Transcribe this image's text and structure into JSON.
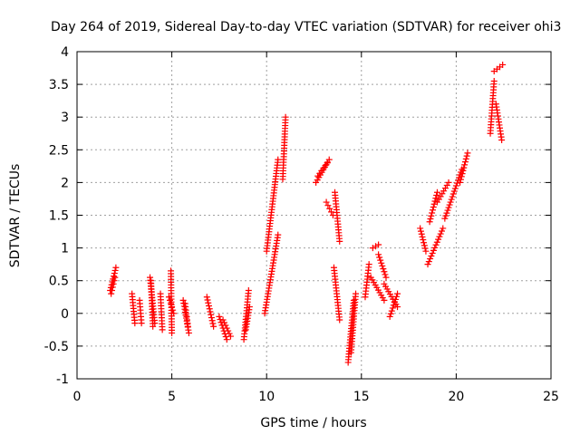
{
  "chart_data": {
    "type": "scatter",
    "title": "Day 264 of 2019, Sidereal Day-to-day VTEC variation (SDTVAR) for receiver ohi3",
    "xlabel": "GPS time / hours",
    "ylabel": "SDTVAR / TECUs",
    "xlim": [
      0,
      25
    ],
    "ylim": [
      -1,
      4
    ],
    "xticks": [
      0,
      5,
      10,
      15,
      20,
      25
    ],
    "yticks": [
      -1,
      -0.5,
      0,
      0.5,
      1,
      1.5,
      2,
      2.5,
      3,
      3.5,
      4
    ],
    "x_tick_labels": [
      "0",
      "5",
      "10",
      "15",
      "20",
      "25"
    ],
    "y_tick_labels": [
      "-1",
      "-0.5",
      "0",
      "0.5",
      "1",
      "1.5",
      "2",
      "2.5",
      "3",
      "3.5",
      "4"
    ],
    "grid": true,
    "marker": "plus",
    "color": "#ff0000",
    "series": [
      {
        "name": "SDTVAR",
        "segments": [
          {
            "x": [
              1.75,
              2.05
            ],
            "y": [
              0.35,
              0.7
            ]
          },
          {
            "x": [
              1.8,
              2.0
            ],
            "y": [
              0.3,
              0.55
            ]
          },
          {
            "x": [
              2.9,
              3.05
            ],
            "y": [
              0.3,
              -0.15
            ]
          },
          {
            "x": [
              3.3,
              3.4
            ],
            "y": [
              0.2,
              -0.15
            ]
          },
          {
            "x": [
              3.85,
              4.1
            ],
            "y": [
              0.55,
              -0.15
            ]
          },
          {
            "x": [
              3.9,
              4.0
            ],
            "y": [
              0.5,
              -0.2
            ]
          },
          {
            "x": [
              4.4,
              4.5
            ],
            "y": [
              0.3,
              -0.25
            ]
          },
          {
            "x": [
              4.85,
              5.1
            ],
            "y": [
              0.25,
              0.0
            ]
          },
          {
            "x": [
              4.95,
              5.0
            ],
            "y": [
              0.65,
              -0.3
            ]
          },
          {
            "x": [
              5.6,
              5.9
            ],
            "y": [
              0.2,
              -0.3
            ]
          },
          {
            "x": [
              5.7,
              5.85
            ],
            "y": [
              0.15,
              -0.2
            ]
          },
          {
            "x": [
              6.85,
              7.2
            ],
            "y": [
              0.25,
              -0.2
            ]
          },
          {
            "x": [
              7.5,
              7.9
            ],
            "y": [
              -0.05,
              -0.4
            ]
          },
          {
            "x": [
              7.7,
              8.1
            ],
            "y": [
              -0.1,
              -0.35
            ]
          },
          {
            "x": [
              8.8,
              9.05
            ],
            "y": [
              -0.4,
              0.35
            ]
          },
          {
            "x": [
              8.9,
              9.1
            ],
            "y": [
              -0.25,
              0.1
            ]
          },
          {
            "x": [
              9.9,
              10.6
            ],
            "y": [
              0.0,
              1.2
            ]
          },
          {
            "x": [
              10.0,
              10.6
            ],
            "y": [
              0.95,
              2.35
            ]
          },
          {
            "x": [
              10.85,
              11.0
            ],
            "y": [
              2.05,
              3.0
            ]
          },
          {
            "x": [
              12.6,
              13.3
            ],
            "y": [
              2.0,
              2.35
            ]
          },
          {
            "x": [
              12.7,
              13.2
            ],
            "y": [
              2.1,
              2.3
            ]
          },
          {
            "x": [
              13.15,
              13.5
            ],
            "y": [
              1.7,
              1.5
            ]
          },
          {
            "x": [
              13.6,
              13.85
            ],
            "y": [
              1.85,
              1.1
            ]
          },
          {
            "x": [
              13.55,
              13.85
            ],
            "y": [
              0.7,
              -0.1
            ]
          },
          {
            "x": [
              14.3,
              14.6
            ],
            "y": [
              -0.75,
              0.2
            ]
          },
          {
            "x": [
              14.45,
              14.7
            ],
            "y": [
              -0.6,
              0.3
            ]
          },
          {
            "x": [
              15.2,
              15.4
            ],
            "y": [
              0.25,
              0.75
            ]
          },
          {
            "x": [
              15.6,
              15.9
            ],
            "y": [
              1.0,
              1.05
            ]
          },
          {
            "x": [
              15.5,
              16.2
            ],
            "y": [
              0.55,
              0.2
            ]
          },
          {
            "x": [
              15.9,
              16.3
            ],
            "y": [
              0.9,
              0.55
            ]
          },
          {
            "x": [
              16.2,
              16.9
            ],
            "y": [
              0.45,
              0.1
            ]
          },
          {
            "x": [
              16.5,
              16.9
            ],
            "y": [
              -0.05,
              0.3
            ]
          },
          {
            "x": [
              18.1,
              18.4
            ],
            "y": [
              1.3,
              0.95
            ]
          },
          {
            "x": [
              18.5,
              19.3
            ],
            "y": [
              0.75,
              1.3
            ]
          },
          {
            "x": [
              18.6,
              19.0
            ],
            "y": [
              1.4,
              1.85
            ]
          },
          {
            "x": [
              19.0,
              19.6
            ],
            "y": [
              1.7,
              2.0
            ]
          },
          {
            "x": [
              19.4,
              20.3
            ],
            "y": [
              1.45,
              2.2
            ]
          },
          {
            "x": [
              20.2,
              20.6
            ],
            "y": [
              2.0,
              2.45
            ]
          },
          {
            "x": [
              21.8,
              22.0
            ],
            "y": [
              2.75,
              3.55
            ]
          },
          {
            "x": [
              22.0,
              22.45
            ],
            "y": [
              3.7,
              3.8
            ]
          },
          {
            "x": [
              22.1,
              22.4
            ],
            "y": [
              3.2,
              2.65
            ]
          }
        ]
      }
    ]
  }
}
